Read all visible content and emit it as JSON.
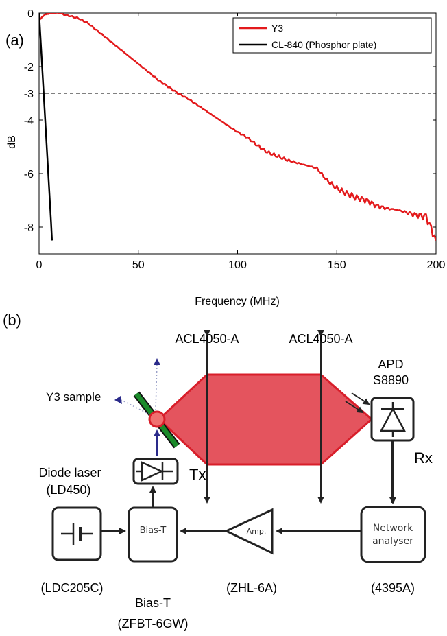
{
  "panel_a": {
    "label": "(a)",
    "chart_data": {
      "type": "line",
      "title": "",
      "xlabel": "Frequency (MHz)",
      "ylabel": "dB",
      "xlim": [
        0,
        200
      ],
      "ylim": [
        -9,
        0
      ],
      "xticks": [
        0,
        50,
        100,
        150,
        200
      ],
      "yticks": [
        0,
        -2,
        -3,
        -4,
        -6,
        -8
      ],
      "xtick_labels": [
        "0",
        "50",
        "100",
        "150",
        "200"
      ],
      "ytick_labels": [
        "0",
        "-2",
        "-3",
        "-4",
        "-6",
        "-8"
      ],
      "grid": false,
      "legend_position": "top-right",
      "reference_line": {
        "y": -3,
        "style": "dashed"
      },
      "series": [
        {
          "name": "Y3",
          "color": "#e31a1c",
          "x": [
            0,
            2,
            5,
            10,
            15,
            20,
            25,
            30,
            35,
            40,
            45,
            50,
            55,
            60,
            65,
            70,
            75,
            80,
            85,
            90,
            95,
            100,
            105,
            110,
            115,
            120,
            125,
            130,
            135,
            140,
            145,
            150,
            155,
            160,
            165,
            170,
            175,
            180,
            185,
            190,
            195,
            200
          ],
          "values": [
            -0.3,
            -0.1,
            0.0,
            0.0,
            -0.1,
            -0.2,
            -0.4,
            -0.7,
            -1.0,
            -1.3,
            -1.6,
            -1.9,
            -2.2,
            -2.5,
            -2.75,
            -3.0,
            -3.2,
            -3.45,
            -3.7,
            -3.95,
            -4.2,
            -4.45,
            -4.65,
            -4.95,
            -5.2,
            -5.35,
            -5.5,
            -5.6,
            -5.7,
            -5.8,
            -6.25,
            -6.55,
            -6.75,
            -6.9,
            -7.0,
            -7.2,
            -7.3,
            -7.35,
            -7.45,
            -7.55,
            -7.6,
            -8.5
          ]
        },
        {
          "name": "CL-840 (Phosphor plate)",
          "color": "#000000",
          "x": [
            0,
            1,
            2,
            3,
            4,
            5,
            6,
            6.5
          ],
          "values": [
            0,
            -1.3,
            -2.6,
            -3.9,
            -5.2,
            -6.5,
            -7.8,
            -8.5
          ]
        }
      ]
    }
  },
  "panel_b": {
    "label": "(b)",
    "lens1_label": "ACL4050-A",
    "lens2_label": "ACL4050-A",
    "apd_label_line1": "APD",
    "apd_label_line2": "S8890",
    "sample_label": "Y3 sample",
    "rx_label": "Rx",
    "tx_label": "Tx",
    "laser_label_line1": "Diode laser",
    "laser_label_line2": "(LD450)",
    "bias_box_text": "Bias-T",
    "amp_text": "Amp.",
    "analyser_line1": "Network",
    "analyser_line2": "analyser",
    "ldc_label": "(LDC205C)",
    "biast_label_line1": "Bias-T",
    "biast_label_line2": "(ZFBT-6GW)",
    "zhl_label": "(ZHL-6A)",
    "analyser_model_label": "(4395A)",
    "colors": {
      "beam": "#e4545e",
      "beam_edge": "#d81e2a",
      "sample_plate": "#1a8a2a",
      "blue_arrow": "#2a2a8a"
    }
  }
}
